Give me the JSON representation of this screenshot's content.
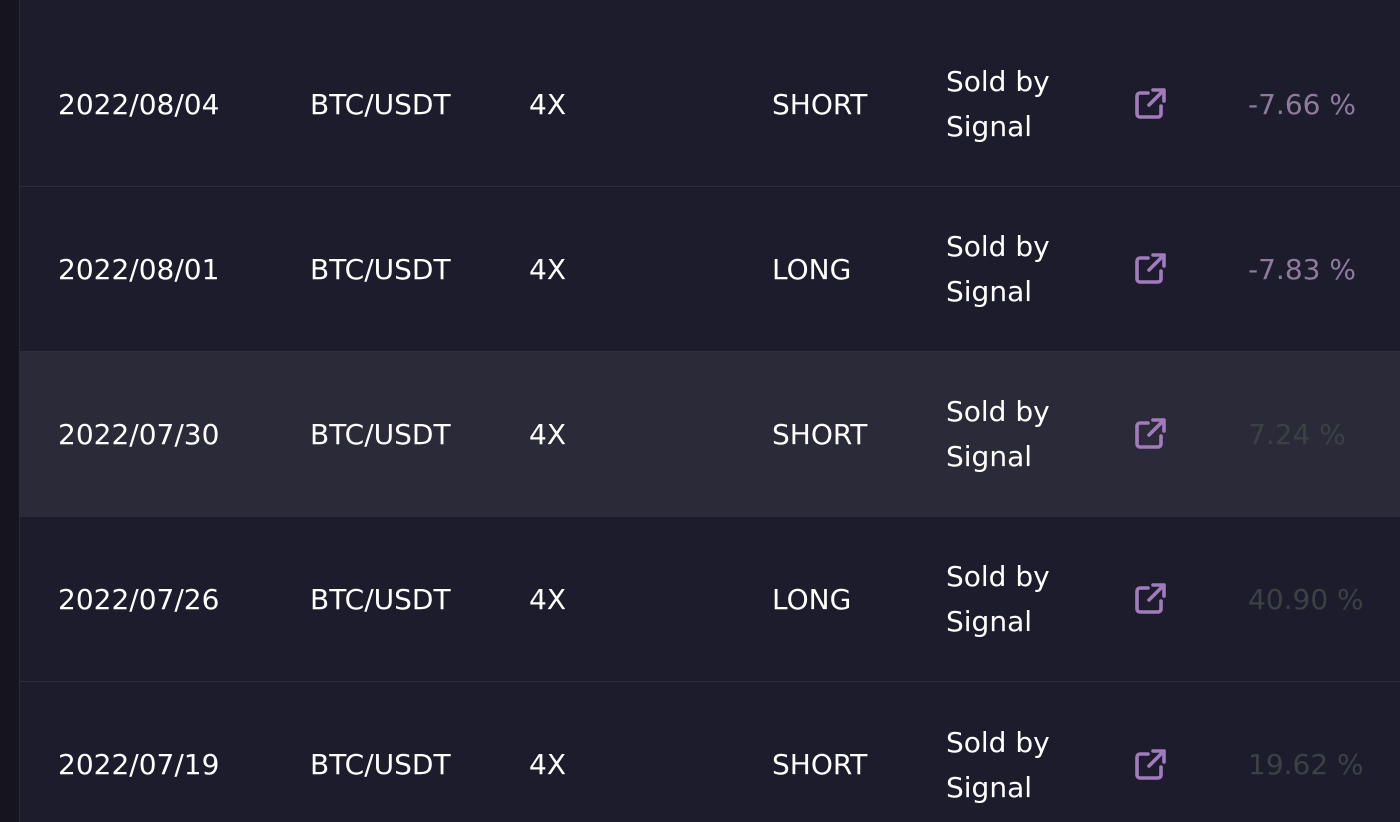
{
  "colors": {
    "background": "#1d1c2c",
    "row_highlight": "#2b2a38",
    "icon": "#a27bbd",
    "negative_pnl": "#8e7a9c",
    "positive_pnl": "#3a4245"
  },
  "trades": [
    {
      "date": "2022/08/04",
      "pair": "BTC/USDT",
      "leverage": "4X",
      "side": "SHORT",
      "status": "Sold by Signal",
      "link_icon": "external-link-icon",
      "pnl": "-7.66 %",
      "pnl_sign": "negative"
    },
    {
      "date": "2022/08/01",
      "pair": "BTC/USDT",
      "leverage": "4X",
      "side": "LONG",
      "status": "Sold by Signal",
      "link_icon": "external-link-icon",
      "pnl": "-7.83 %",
      "pnl_sign": "negative"
    },
    {
      "date": "2022/07/30",
      "pair": "BTC/USDT",
      "leverage": "4X",
      "side": "SHORT",
      "status": "Sold by Signal",
      "link_icon": "external-link-icon",
      "pnl": "7.24 %",
      "pnl_sign": "positive"
    },
    {
      "date": "2022/07/26",
      "pair": "BTC/USDT",
      "leverage": "4X",
      "side": "LONG",
      "status": "Sold by Signal",
      "link_icon": "external-link-icon",
      "pnl": "40.90 %",
      "pnl_sign": "positive"
    },
    {
      "date": "2022/07/19",
      "pair": "BTC/USDT",
      "leverage": "4X",
      "side": "SHORT",
      "status": "Sold by Signal",
      "link_icon": "external-link-icon",
      "pnl": "19.62 %",
      "pnl_sign": "positive"
    }
  ]
}
